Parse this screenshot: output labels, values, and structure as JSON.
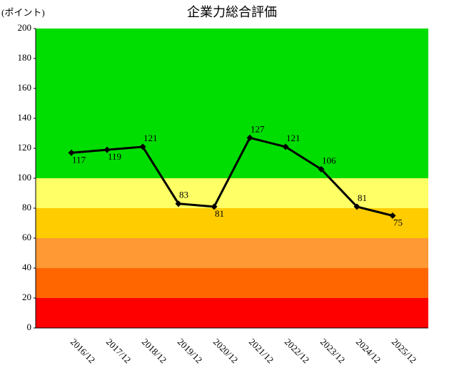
{
  "chart_data": {
    "type": "line",
    "title": "企業力総合評価",
    "y_label": "(ポイント)",
    "categories": [
      "2016/12",
      "2017/12",
      "2018/12",
      "2019/12",
      "2020/12",
      "2021/12",
      "2022/12",
      "2023/12",
      "2024/12",
      "2025/12"
    ],
    "values": [
      117,
      119,
      121,
      83,
      81,
      127,
      121,
      106,
      81,
      75
    ],
    "color": "#000000",
    "ylim": [
      0,
      200
    ],
    "yticks": [
      0,
      20,
      40,
      60,
      80,
      100,
      120,
      140,
      160,
      180,
      200
    ],
    "bands": [
      {
        "from": 0,
        "to": 20,
        "color": "#ff0000"
      },
      {
        "from": 20,
        "to": 40,
        "color": "#ff6600"
      },
      {
        "from": 40,
        "to": 60,
        "color": "#ff9933"
      },
      {
        "from": 60,
        "to": 80,
        "color": "#ffcc00"
      },
      {
        "from": 80,
        "to": 100,
        "color": "#ffff66"
      },
      {
        "from": 100,
        "to": 200,
        "color": "#00dd00"
      }
    ]
  }
}
